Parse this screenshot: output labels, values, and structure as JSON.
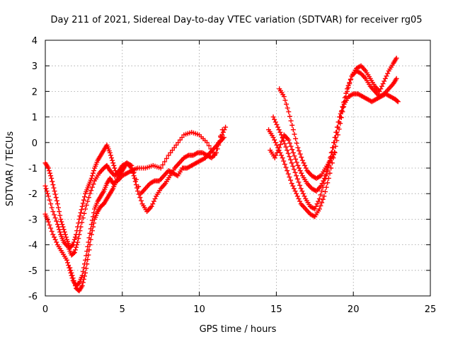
{
  "chart_data": {
    "type": "scatter",
    "title": "Day 211 of 2021, Sidereal Day-to-day VTEC variation (SDTVAR) for receiver rg05",
    "xlabel": "GPS time / hours",
    "ylabel": "SDTVAR / TECUs",
    "xlim": [
      0,
      25
    ],
    "ylim": [
      -6,
      4
    ],
    "xticks": [
      "0",
      "5",
      "10",
      "15",
      "20",
      "25"
    ],
    "yticks": [
      "-6",
      "-5",
      "-4",
      "-3",
      "-2",
      "-1",
      "0",
      "1",
      "2",
      "3",
      "4"
    ],
    "grid": true,
    "marker": "plus",
    "color": "#ff0000",
    "series": [
      {
        "name": "track-1",
        "x": [
          0.0,
          0.2,
          0.5,
          0.8,
          1.0,
          1.2,
          1.5,
          1.7,
          1.9,
          2.1,
          2.3,
          2.6,
          2.9,
          3.2,
          3.5,
          3.8,
          4.0,
          4.2,
          4.5,
          4.8,
          5.0,
          5.3,
          5.6,
          5.8,
          6.0,
          6.3,
          6.6,
          6.9,
          7.2,
          7.5,
          7.8,
          8.1,
          8.4,
          8.7,
          9.0,
          9.3,
          9.6,
          9.9,
          10.2,
          10.5,
          10.8,
          11.1,
          11.4,
          11.7
        ],
        "y": [
          -1.7,
          -2.1,
          -2.7,
          -3.2,
          -3.6,
          -3.9,
          -4.1,
          -4.4,
          -4.3,
          -3.9,
          -3.3,
          -2.6,
          -2.0,
          -1.5,
          -1.2,
          -1.0,
          -0.9,
          -1.1,
          -1.3,
          -1.1,
          -0.9,
          -0.8,
          -1.0,
          -1.4,
          -1.9,
          -2.4,
          -2.7,
          -2.5,
          -2.1,
          -1.8,
          -1.6,
          -1.3,
          -1.0,
          -0.8,
          -0.6,
          -0.5,
          -0.5,
          -0.4,
          -0.4,
          -0.5,
          -0.6,
          -0.4,
          0.2,
          0.6
        ]
      },
      {
        "name": "track-2",
        "x": [
          0.0,
          0.2,
          0.5,
          0.8,
          1.1,
          1.4,
          1.6,
          1.8,
          2.0,
          2.2,
          2.4,
          2.6,
          2.8,
          3.0,
          3.2,
          3.4,
          3.6,
          3.8,
          4.0,
          4.2,
          4.4,
          4.7,
          5.0,
          5.3,
          5.6,
          6.0,
          6.5,
          7.0,
          7.5,
          8.0,
          8.5,
          9.0,
          9.5,
          10.0,
          10.5,
          11.0,
          11.5
        ],
        "y": [
          -2.8,
          -3.1,
          -3.6,
          -4.0,
          -4.3,
          -4.6,
          -5.0,
          -5.4,
          -5.6,
          -5.5,
          -5.2,
          -4.6,
          -3.9,
          -3.2,
          -2.6,
          -2.3,
          -2.1,
          -1.9,
          -1.6,
          -1.4,
          -1.6,
          -1.5,
          -1.3,
          -1.2,
          -1.1,
          -1.0,
          -1.0,
          -0.9,
          -1.0,
          -0.5,
          -0.1,
          0.3,
          0.4,
          0.3,
          0.0,
          -0.5,
          0.5
        ]
      },
      {
        "name": "track-3",
        "x": [
          1.6,
          1.8,
          2.0,
          2.2,
          2.4,
          2.6,
          2.8,
          3.0,
          3.2,
          3.4,
          3.6,
          3.8,
          4.0,
          4.2,
          4.4,
          4.6,
          4.8,
          5.0,
          5.3,
          5.6,
          6.2,
          6.5,
          6.8,
          7.1,
          7.4,
          7.7,
          8.0,
          8.3,
          8.6,
          8.9,
          9.2,
          9.5,
          9.8,
          10.1,
          10.4,
          10.7,
          11.0,
          11.3,
          11.6
        ],
        "y": [
          -4.9,
          -5.3,
          -5.7,
          -5.8,
          -5.6,
          -5.1,
          -4.4,
          -3.6,
          -3.0,
          -2.7,
          -2.5,
          -2.4,
          -2.2,
          -2.0,
          -1.8,
          -1.5,
          -1.2,
          -1.0,
          -0.8,
          -0.9,
          -2.0,
          -1.8,
          -1.6,
          -1.5,
          -1.5,
          -1.3,
          -1.1,
          -1.2,
          -1.3,
          -1.0,
          -1.0,
          -0.9,
          -0.8,
          -0.7,
          -0.6,
          -0.4,
          -0.2,
          0.0,
          0.2
        ]
      },
      {
        "name": "track-4",
        "x": [
          0.0,
          0.2,
          0.4,
          0.6,
          0.8,
          1.0,
          1.2,
          1.4,
          1.6,
          1.8,
          2.0,
          2.2,
          2.4,
          2.6,
          2.8,
          3.0,
          3.2,
          3.4,
          3.6,
          3.8,
          4.0,
          4.2,
          4.4,
          4.6,
          4.8,
          5.0,
          5.2
        ],
        "y": [
          -0.8,
          -1.0,
          -1.4,
          -1.9,
          -2.4,
          -3.0,
          -3.4,
          -3.8,
          -4.1,
          -4.0,
          -3.6,
          -3.0,
          -2.5,
          -2.0,
          -1.7,
          -1.4,
          -1.0,
          -0.7,
          -0.5,
          -0.3,
          -0.1,
          -0.4,
          -0.8,
          -1.2,
          -1.3,
          -1.1,
          -0.9
        ]
      },
      {
        "name": "track-5",
        "x": [
          14.5,
          14.8,
          15.1,
          15.4,
          15.7,
          16.0,
          16.3,
          16.6,
          16.9,
          17.2,
          17.5,
          17.8,
          18.1,
          18.4,
          18.7,
          19.0,
          19.3,
          19.6,
          19.9,
          20.2,
          20.5,
          20.8,
          21.1,
          21.4,
          21.7,
          22.0,
          22.3,
          22.6,
          22.8
        ],
        "y": [
          0.5,
          0.2,
          -0.2,
          -0.6,
          -1.1,
          -1.6,
          -2.0,
          -2.4,
          -2.6,
          -2.8,
          -2.9,
          -2.6,
          -2.1,
          -1.4,
          -0.6,
          0.3,
          1.2,
          2.0,
          2.6,
          2.9,
          3.0,
          2.8,
          2.5,
          2.2,
          2.0,
          2.4,
          2.8,
          3.1,
          3.3
        ]
      },
      {
        "name": "track-6",
        "x": [
          14.8,
          15.1,
          15.4,
          15.7,
          16.0,
          16.3,
          16.6,
          16.9,
          17.2,
          17.5,
          17.8,
          18.1,
          18.4,
          18.7,
          19.0,
          19.3,
          19.6,
          19.9,
          20.2,
          20.5,
          20.8,
          21.1,
          21.4,
          21.7,
          22.0,
          22.3,
          22.6,
          22.8
        ],
        "y": [
          1.0,
          0.6,
          0.2,
          -0.3,
          -0.8,
          -1.3,
          -1.8,
          -2.2,
          -2.5,
          -2.6,
          -2.2,
          -1.6,
          -0.9,
          -0.2,
          0.6,
          1.4,
          2.1,
          2.6,
          2.8,
          2.7,
          2.5,
          2.2,
          2.0,
          1.8,
          1.9,
          2.1,
          2.3,
          2.5
        ]
      },
      {
        "name": "track-7",
        "x": [
          14.6,
          14.9,
          15.2,
          15.5,
          15.8,
          16.1,
          16.4,
          16.7,
          17.0,
          17.3,
          17.6,
          17.9,
          18.2,
          18.5,
          18.8,
          19.1,
          19.4,
          19.7,
          20.0,
          20.3,
          20.6,
          20.9,
          21.2,
          21.5,
          21.8,
          22.1,
          22.4,
          22.7,
          22.9
        ],
        "y": [
          -0.3,
          -0.6,
          -0.2,
          0.3,
          0.1,
          -0.4,
          -0.9,
          -1.3,
          -1.6,
          -1.8,
          -1.9,
          -1.7,
          -1.3,
          -0.6,
          0.2,
          1.0,
          1.5,
          1.8,
          1.9,
          1.9,
          1.8,
          1.7,
          1.6,
          1.7,
          1.8,
          1.9,
          1.8,
          1.7,
          1.6
        ]
      },
      {
        "name": "track-8",
        "x": [
          15.2,
          15.5,
          15.8,
          16.1,
          16.4,
          16.7,
          17.0,
          17.3,
          17.6,
          17.9,
          18.2,
          18.5,
          18.8
        ],
        "y": [
          2.1,
          1.8,
          1.2,
          0.5,
          -0.2,
          -0.7,
          -1.1,
          -1.3,
          -1.4,
          -1.3,
          -1.0,
          -0.7,
          -0.4
        ]
      }
    ]
  }
}
